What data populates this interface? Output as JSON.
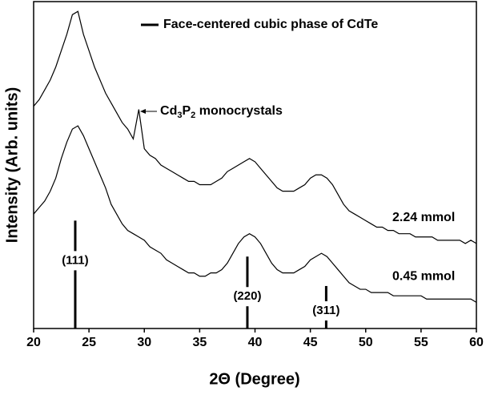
{
  "chart_data": {
    "type": "line",
    "xlabel": "2Θ (Degree)",
    "ylabel": "Intensity (Arb. units)",
    "xlim": [
      20,
      60
    ],
    "xticks": [
      20,
      25,
      30,
      35,
      40,
      45,
      50,
      55,
      60
    ],
    "ylim": [
      0,
      100
    ],
    "x": [
      20,
      20.5,
      21,
      21.5,
      22,
      22.5,
      23,
      23.5,
      24,
      24.5,
      25,
      25.5,
      26,
      26.5,
      27,
      27.5,
      28,
      28.5,
      29,
      29.5,
      30,
      30.5,
      31,
      31.5,
      32,
      32.5,
      33,
      33.5,
      34,
      34.5,
      35,
      35.5,
      36,
      36.5,
      37,
      37.5,
      38,
      38.5,
      39,
      39.5,
      40,
      40.5,
      41,
      41.5,
      42,
      42.5,
      43,
      43.5,
      44,
      44.5,
      45,
      45.5,
      46,
      46.5,
      47,
      47.5,
      48,
      48.5,
      49,
      49.5,
      50,
      50.5,
      51,
      51.5,
      52,
      52.5,
      53,
      53.5,
      54,
      54.5,
      55,
      55.5,
      56,
      56.5,
      57,
      57.5,
      58,
      58.5,
      59,
      59.5,
      60
    ],
    "series": [
      {
        "name": "2.24 mmol",
        "color": "#000000",
        "values": [
          68,
          70,
          73,
          76,
          80,
          85,
          90,
          96,
          97,
          90,
          85,
          80,
          76,
          72,
          69,
          66,
          63,
          61,
          58,
          67,
          55,
          53,
          52,
          50,
          49,
          48,
          47,
          46,
          45,
          45,
          44,
          44,
          44,
          45,
          46,
          48,
          49,
          50,
          51,
          52,
          51,
          49,
          47,
          45,
          43,
          42,
          42,
          42,
          43,
          44,
          46,
          47,
          47,
          46,
          44,
          41,
          38,
          36,
          35,
          34,
          33,
          32,
          31,
          31,
          30,
          30,
          29,
          29,
          29,
          28,
          28,
          28,
          28,
          27,
          27,
          27,
          27,
          27,
          26,
          27,
          26
        ]
      },
      {
        "name": "0.45 mmol",
        "color": "#000000",
        "values": [
          35,
          37,
          39,
          42,
          46,
          52,
          57,
          61,
          62,
          59,
          55,
          51,
          47,
          43,
          38,
          35,
          32,
          30,
          29,
          28,
          27,
          25,
          24,
          23,
          21,
          20,
          19,
          18,
          17,
          17,
          16,
          16,
          17,
          17,
          18,
          20,
          23,
          26,
          28,
          29,
          28,
          26,
          23,
          20,
          18,
          17,
          17,
          17,
          18,
          19,
          21,
          22,
          23,
          22,
          20,
          18,
          16,
          14,
          13,
          12,
          12,
          11,
          11,
          11,
          11,
          10,
          10,
          10,
          10,
          10,
          10,
          9,
          9,
          9,
          9,
          9,
          9,
          9,
          9,
          9,
          8
        ]
      }
    ],
    "reference": {
      "name": "Face-centered cubic phase of CdTe",
      "x": [
        23.76,
        39.31,
        46.43
      ],
      "values": [
        33,
        22,
        13
      ],
      "labels": [
        "(111)",
        "(220)",
        "(311)"
      ]
    },
    "annotation": "Cd3P2 monocrystals"
  }
}
